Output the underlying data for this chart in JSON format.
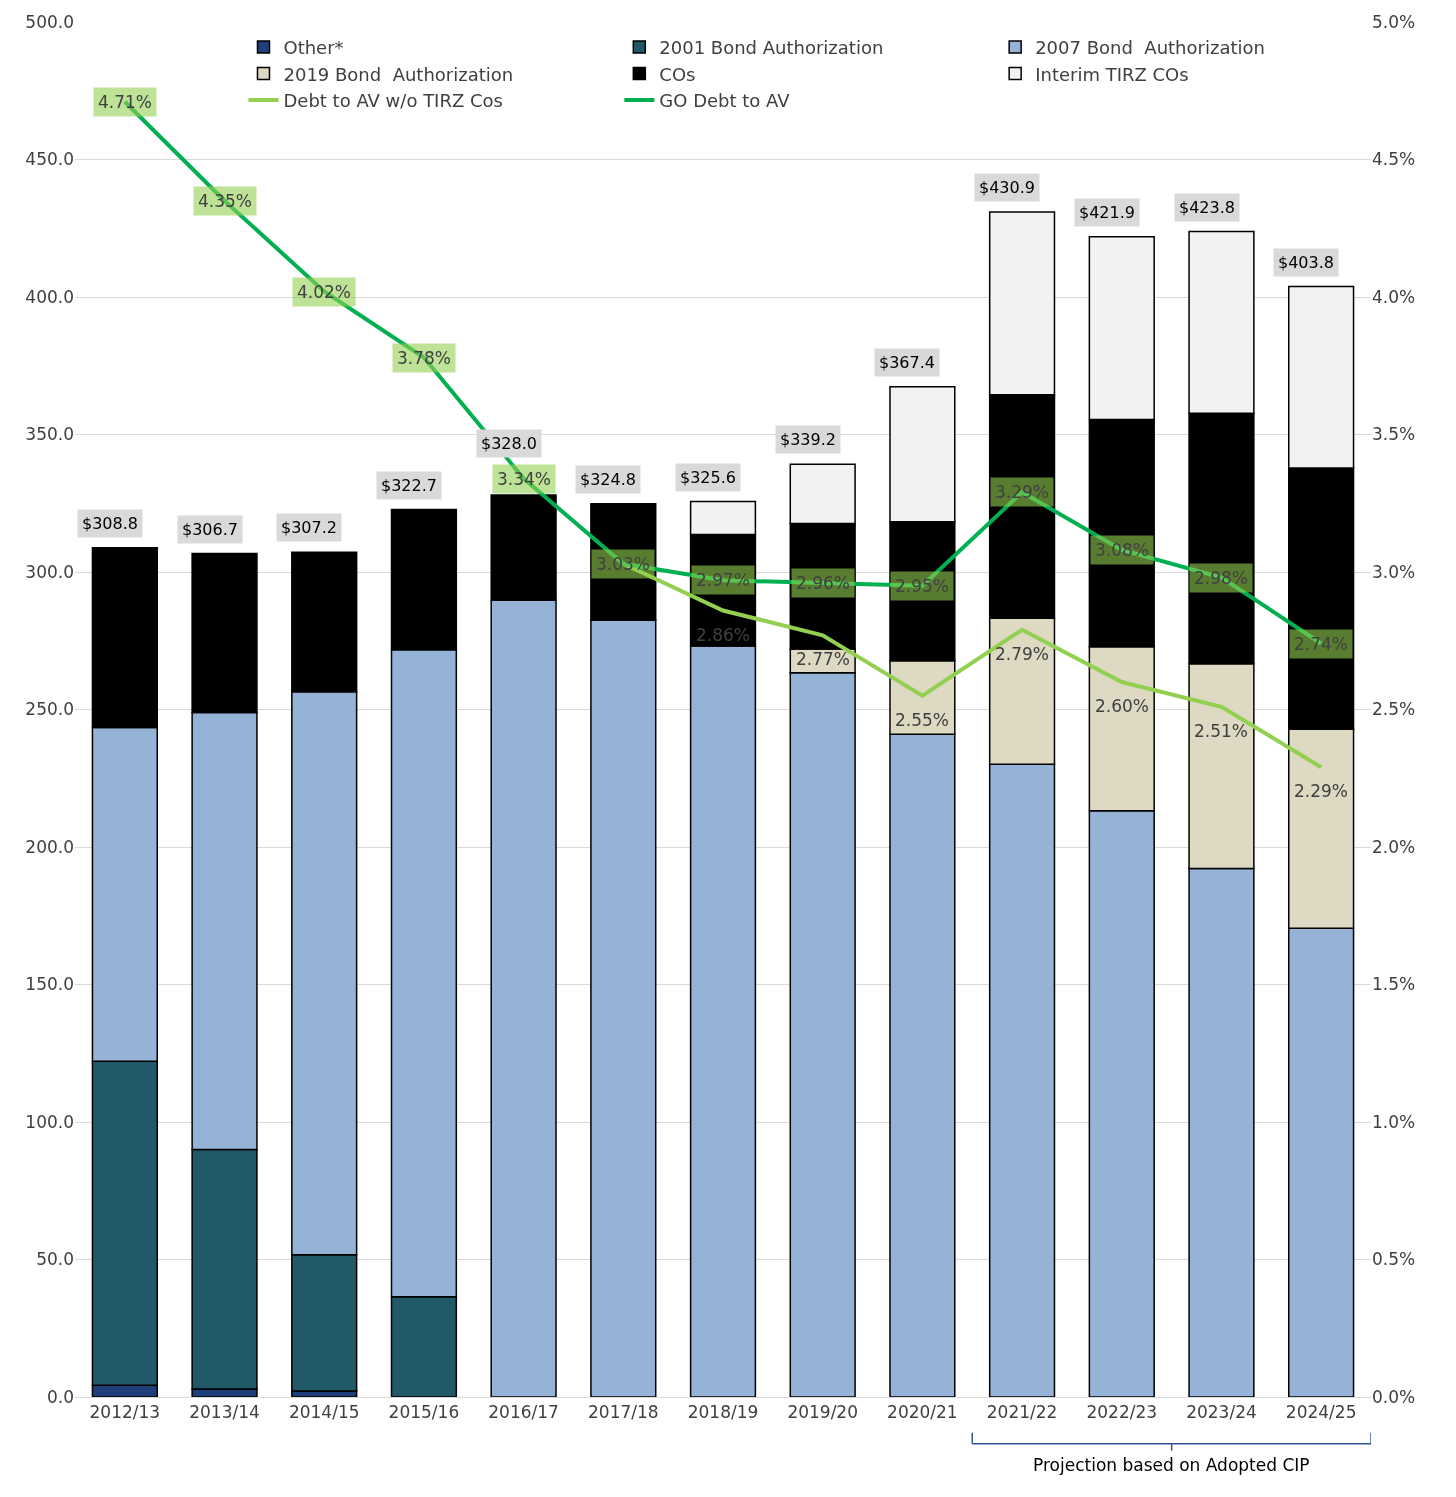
{
  "chart_data": {
    "type": "bar",
    "stacked": true,
    "categories": [
      "2012/13",
      "2013/14",
      "2014/15",
      "2015/16",
      "2016/17",
      "2017/18",
      "2018/19",
      "2019/20",
      "2020/21",
      "2021/22",
      "2022/23",
      "2023/24",
      "2024/25"
    ],
    "series": [
      {
        "name": "Other*",
        "color": "#1f3f7a",
        "values": [
          4.3,
          2.9,
          2.2,
          0,
          0,
          0,
          0,
          0,
          0,
          0,
          0,
          0,
          0
        ]
      },
      {
        "name": "2001 Bond Authorization",
        "color": "#215968",
        "values": [
          117.8,
          87.1,
          49.5,
          36.5,
          0,
          0,
          0,
          0,
          0,
          0,
          0,
          0,
          0
        ]
      },
      {
        "name": "2007 Bond  Authorization",
        "color": "#95b3d7",
        "values": [
          121.4,
          158.9,
          204.8,
          235.2,
          289.7,
          282.5,
          273.1,
          263.4,
          241.0,
          230.1,
          213.2,
          192.2,
          170.5
        ]
      },
      {
        "name": "2019 Bond  Authorization",
        "color": "#ddd9c3",
        "values": [
          0,
          0,
          0,
          0,
          0,
          0,
          0,
          8.6,
          26.7,
          53.1,
          59.6,
          74.4,
          72.3
        ]
      },
      {
        "name": "COs",
        "color": "#000000",
        "values": [
          65.3,
          57.8,
          50.7,
          51.0,
          38.3,
          42.3,
          40.5,
          45.6,
          50.6,
          81.3,
          82.7,
          91.1,
          95.0
        ]
      },
      {
        "name": "Interim TIRZ COs",
        "color": "#f2f2f2",
        "values": [
          0,
          0,
          0,
          0,
          0,
          0,
          12.0,
          21.6,
          49.1,
          66.4,
          66.4,
          66.1,
          66.0
        ]
      },
      {
        "name": "Debt to AV w/o TIRZ Cos",
        "type": "line",
        "axis": "y2",
        "color": "#92d050",
        "values": [
          null,
          null,
          null,
          null,
          null,
          3.03,
          2.86,
          2.77,
          2.55,
          2.79,
          2.6,
          2.51,
          2.29
        ],
        "value_labels": [
          null,
          null,
          null,
          null,
          null,
          null,
          "2.86%",
          "2.77%",
          "2.55%",
          "2.79%",
          "2.60%",
          "2.51%",
          "2.29%"
        ]
      },
      {
        "name": "GO Debt to AV",
        "type": "line",
        "axis": "y2",
        "color": "#00b050",
        "values": [
          4.71,
          4.35,
          4.02,
          3.78,
          3.34,
          3.03,
          2.97,
          2.96,
          2.95,
          3.29,
          3.08,
          2.98,
          2.74
        ],
        "value_labels": [
          "4.71%",
          "4.35%",
          "4.02%",
          "3.78%",
          "3.34%",
          "3.03%",
          "2.97%",
          "2.96%",
          "2.95%",
          "3.29%",
          "3.08%",
          "2.98%",
          "2.74%"
        ]
      }
    ],
    "totals": [
      "$308.8",
      "$306.7",
      "$307.2",
      "$322.7",
      "$328.0",
      "$324.8",
      "$325.6",
      "$339.2",
      "$367.4",
      "$430.9",
      "$421.9",
      "$423.8",
      "$403.8"
    ],
    "ylim": [
      0,
      500
    ],
    "yticks": [
      {
        "value": 0,
        "label": "0.0"
      },
      {
        "value": 50,
        "label": "50.0"
      },
      {
        "value": 100,
        "label": "100.0"
      },
      {
        "value": 150,
        "label": "150.0"
      },
      {
        "value": 200,
        "label": "200.0"
      },
      {
        "value": 250,
        "label": "250.0"
      },
      {
        "value": 300,
        "label": "300.0"
      },
      {
        "value": 350,
        "label": "350.0"
      },
      {
        "value": 400,
        "label": "400.0"
      },
      {
        "value": 450,
        "label": "450.0"
      },
      {
        "value": 500,
        "label": "500.0"
      }
    ],
    "y2lim": [
      0,
      5
    ],
    "y2ticks": [
      {
        "value": 0,
        "label": "0.0%"
      },
      {
        "value": 0.5,
        "label": "0.5%"
      },
      {
        "value": 1,
        "label": "1.0%"
      },
      {
        "value": 1.5,
        "label": "1.5%"
      },
      {
        "value": 2,
        "label": "2.0%"
      },
      {
        "value": 2.5,
        "label": "2.5%"
      },
      {
        "value": 3,
        "label": "3.0%"
      },
      {
        "value": 3.5,
        "label": "3.5%"
      },
      {
        "value": 4,
        "label": "4.0%"
      },
      {
        "value": 4.5,
        "label": "4.5%"
      },
      {
        "value": 5,
        "label": "5.0%"
      }
    ],
    "annotations": [
      "Projection based on Adopted CIP"
    ],
    "grid": "y",
    "legend": "top"
  }
}
